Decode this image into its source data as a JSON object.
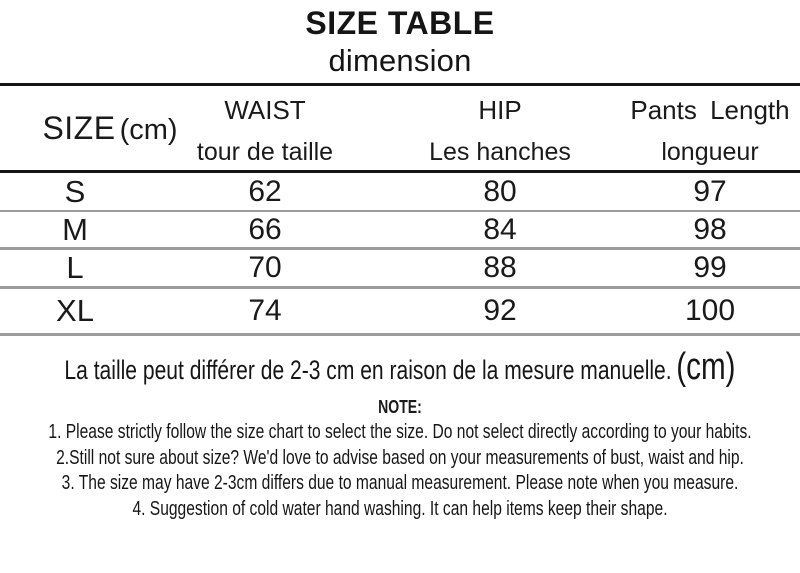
{
  "title": {
    "line1": "SIZE TABLE",
    "line2": "dimension"
  },
  "table": {
    "size_header": {
      "label": "SIZE",
      "unit": "(cm)"
    },
    "columns": [
      {
        "en": "WAIST",
        "fr": "tour de taille"
      },
      {
        "en": "HIP",
        "fr": "Les hanches"
      },
      {
        "en": "Pants Length",
        "fr": "longueur"
      }
    ],
    "rows": [
      {
        "size": "S",
        "waist": "62",
        "hip": "80",
        "length": "97"
      },
      {
        "size": "M",
        "waist": "66",
        "hip": "84",
        "length": "98"
      },
      {
        "size": "L",
        "waist": "70",
        "hip": "88",
        "length": "99"
      },
      {
        "size": "XL",
        "waist": "74",
        "hip": "92",
        "length": "100"
      }
    ]
  },
  "measure_note": {
    "text": "La taille peut différer de 2-3 cm en raison de la mesure manuelle.",
    "unit": "(cm)"
  },
  "notes": {
    "heading": "NOTE:",
    "items": [
      "1. Please strictly follow the size chart to select the size. Do not select directly according to your habits.",
      "2.Still not sure about size? We'd love to advise based on your measurements of bust, waist and hip.",
      "3. The size may have 2-3cm differs due to manual measurement. Please note when you measure.",
      "4. Suggestion of cold water hand washing. It can help items keep their shape."
    ]
  }
}
